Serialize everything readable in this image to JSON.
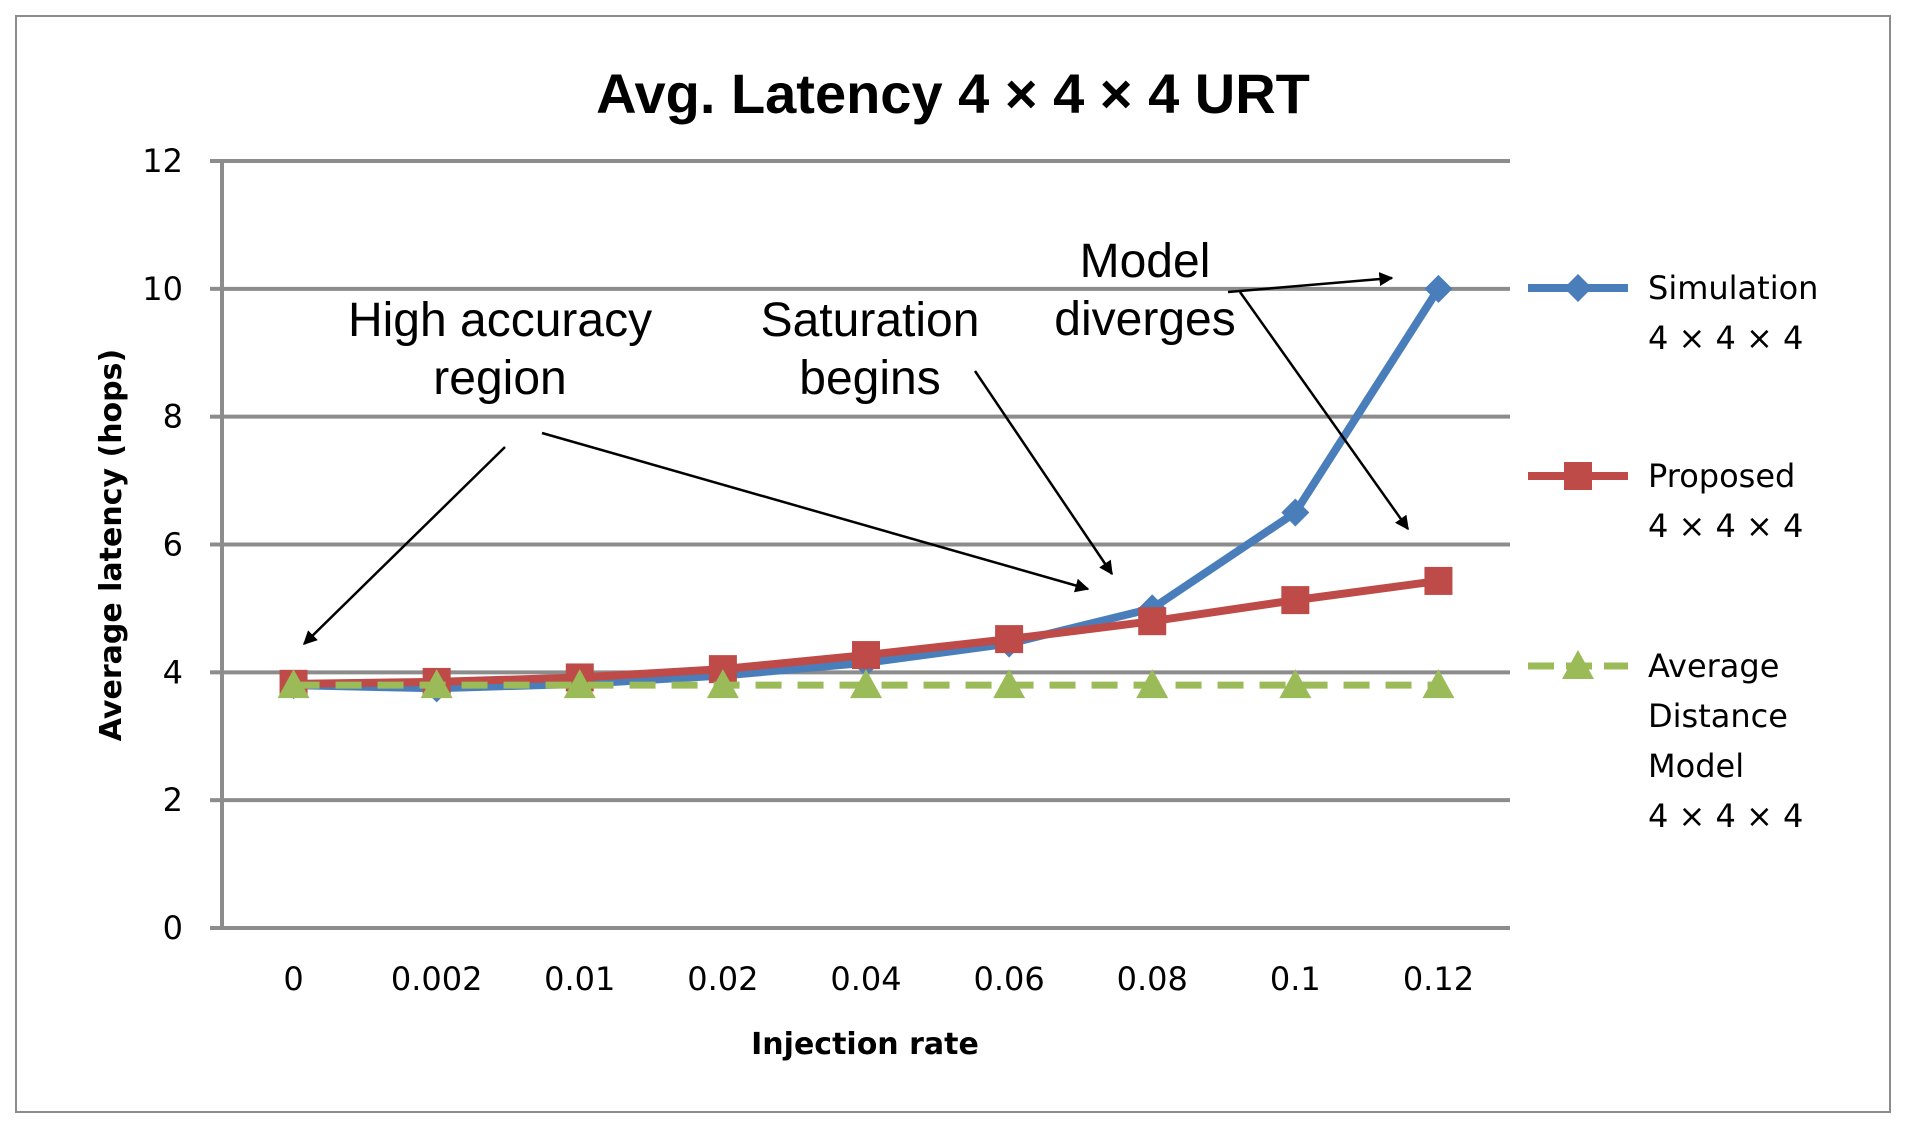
{
  "chart_data": {
    "type": "line",
    "title": "Avg. Latency 4 × 4 × 4 URT",
    "xlabel": "Injection rate",
    "ylabel": "Average latency (hops)",
    "categories": [
      "0",
      "0.002",
      "0.01",
      "0.02",
      "0.04",
      "0.06",
      "0.08",
      "0.1",
      "0.12"
    ],
    "ylim": [
      0,
      12
    ],
    "yticks": [
      "0",
      "2",
      "4",
      "6",
      "8",
      "10",
      "12"
    ],
    "grid": true,
    "legend_position": "right",
    "series": [
      {
        "name_lines": [
          "Simulation",
          "4 × 4 × 4"
        ],
        "color": "#4a7ebb",
        "marker": "diamond",
        "dash": "solid",
        "values": [
          3.8,
          3.75,
          3.82,
          3.95,
          4.15,
          4.45,
          5.0,
          6.5,
          10.0
        ]
      },
      {
        "name_lines": [
          "Proposed",
          "4 × 4 × 4"
        ],
        "color": "#be4b48",
        "marker": "square",
        "dash": "solid",
        "values": [
          3.82,
          3.85,
          3.92,
          4.05,
          4.27,
          4.52,
          4.8,
          5.13,
          5.43
        ]
      },
      {
        "name_lines": [
          "Average",
          "Distance",
          "Model",
          "4 × 4 × 4"
        ],
        "color": "#9bbb59",
        "marker": "triangle",
        "dash": "dashed",
        "values": [
          3.8,
          3.8,
          3.8,
          3.8,
          3.8,
          3.8,
          3.8,
          3.8,
          3.8
        ]
      }
    ],
    "annotations": [
      {
        "lines": [
          "High accuracy",
          "region"
        ]
      },
      {
        "lines": [
          "Saturation",
          "begins"
        ]
      },
      {
        "lines": [
          "Model",
          "diverges"
        ]
      }
    ]
  }
}
